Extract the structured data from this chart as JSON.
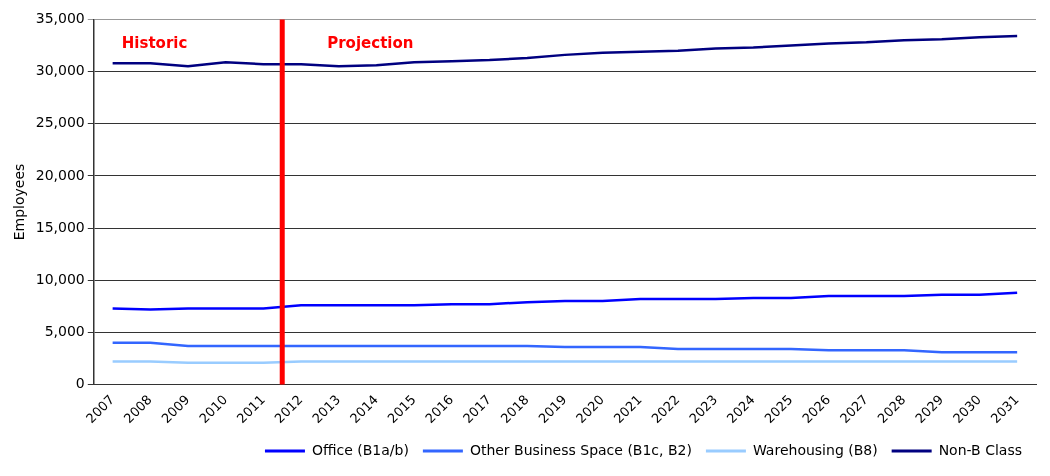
{
  "chart_data": {
    "type": "line",
    "ylabel": "Employees",
    "categories": [
      "2007",
      "2008",
      "2009",
      "2010",
      "2011",
      "2012",
      "2013",
      "2014",
      "2015",
      "2016",
      "2017",
      "2018",
      "2019",
      "2020",
      "2021",
      "2022",
      "2023",
      "2024",
      "2025",
      "2026",
      "2027",
      "2028",
      "2029",
      "2030",
      "2031"
    ],
    "series": [
      {
        "name": "Office (B1a/b)",
        "color": "#0000ff",
        "values": [
          7300,
          7200,
          7300,
          7300,
          7300,
          7600,
          7600,
          7600,
          7600,
          7700,
          7700,
          7900,
          8000,
          8000,
          8200,
          8200,
          8200,
          8300,
          8300,
          8500,
          8500,
          8500,
          8600,
          8600,
          8800
        ]
      },
      {
        "name": "Other Business Space (B1c, B2)",
        "color": "#3366ff",
        "values": [
          4000,
          4000,
          3700,
          3700,
          3700,
          3700,
          3700,
          3700,
          3700,
          3700,
          3700,
          3700,
          3600,
          3600,
          3600,
          3400,
          3400,
          3400,
          3400,
          3300,
          3300,
          3300,
          3100,
          3100,
          3100
        ]
      },
      {
        "name": "Warehousing (B8)",
        "color": "#99ccff",
        "values": [
          2200,
          2200,
          2100,
          2100,
          2100,
          2200,
          2200,
          2200,
          2200,
          2200,
          2200,
          2200,
          2200,
          2200,
          2200,
          2200,
          2200,
          2200,
          2200,
          2200,
          2200,
          2200,
          2200,
          2200,
          2200
        ]
      },
      {
        "name": "Non-B Class",
        "color": "#000080",
        "values": [
          30800,
          30800,
          30500,
          30900,
          30700,
          30700,
          30500,
          30600,
          30900,
          31000,
          31100,
          31300,
          31600,
          31800,
          31900,
          32000,
          32200,
          32300,
          32500,
          32700,
          32800,
          33000,
          33100,
          33300,
          33400
        ]
      }
    ],
    "ylim": [
      0,
      35000
    ],
    "yticks": [
      0,
      {
        "value": 5000,
        "label": "5,000"
      },
      {
        "value": 10000,
        "label": "10,000"
      },
      {
        "value": 15000,
        "label": "15,000"
      },
      {
        "value": 20000,
        "label": "20,000"
      },
      {
        "value": 25000,
        "label": "25,000"
      },
      {
        "value": 30000,
        "label": "30,000"
      },
      {
        "value": 35000,
        "label": "35,000"
      }
    ],
    "grid": "y",
    "legend": "bottom",
    "marker": "none",
    "line_style": "solid",
    "ref_lines": [
      {
        "axis": "x",
        "value": "2012",
        "color": "#ff0000"
      }
    ],
    "annotations": [
      "Historic",
      "Projection"
    ]
  }
}
